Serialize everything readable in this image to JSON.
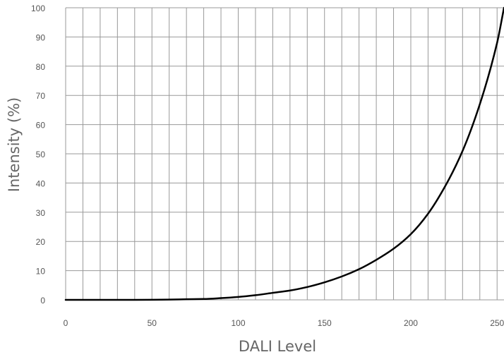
{
  "chart_data": {
    "type": "line",
    "title": "",
    "xlabel": "DALI Level",
    "ylabel": "Intensity (%)",
    "xlim": [
      0,
      254
    ],
    "ylim": [
      0,
      100
    ],
    "xticks": [
      0,
      50,
      100,
      150,
      200,
      250
    ],
    "yticks": [
      0,
      10,
      20,
      30,
      40,
      50,
      60,
      70,
      80,
      90,
      100
    ],
    "x_grid_step": 10,
    "y_grid_step": 10,
    "grid": true,
    "series": [
      {
        "color": "#000000",
        "x": [
          0,
          10,
          20,
          30,
          40,
          50,
          60,
          70,
          80,
          90,
          100,
          110,
          120,
          130,
          140,
          150,
          160,
          170,
          180,
          190,
          200,
          210,
          220,
          230,
          240,
          250,
          254
        ],
        "y": [
          0.0,
          0.0,
          0.0,
          0.0,
          0.01,
          0.03,
          0.08,
          0.2,
          0.3,
          0.6,
          1.0,
          1.6,
          2.4,
          3.2,
          4.4,
          6.0,
          8.0,
          10.5,
          13.7,
          17.5,
          22.5,
          29.5,
          39,
          51,
          67,
          88,
          100
        ]
      }
    ]
  }
}
